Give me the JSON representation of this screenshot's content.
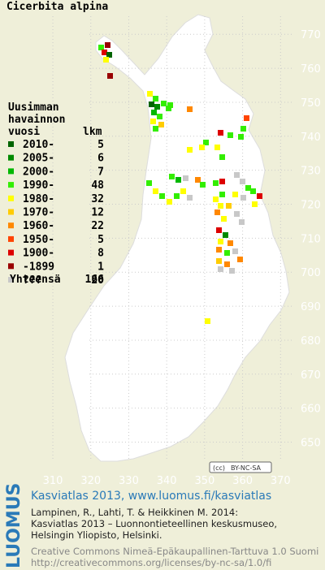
{
  "title": "Cicerbita alpina",
  "legend": {
    "heading": [
      "Uusimman",
      "havainnon",
      "vuosi"
    ],
    "count_heading": "lkm",
    "items": [
      {
        "label": "2010-",
        "count": 5,
        "color": "#006400"
      },
      {
        "label": "2005-",
        "count": 6,
        "color": "#008a00"
      },
      {
        "label": "2000-",
        "count": 7,
        "color": "#00b800"
      },
      {
        "label": "1990-",
        "count": 48,
        "color": "#33ee00"
      },
      {
        "label": "1980-",
        "count": 32,
        "color": "#ffff00"
      },
      {
        "label": "1970-",
        "count": 12,
        "color": "#ffcc00"
      },
      {
        "label": "1960-",
        "count": 22,
        "color": "#ff8800"
      },
      {
        "label": "1950-",
        "count": 5,
        "color": "#ff4400"
      },
      {
        "label": "1900-",
        "count": 8,
        "color": "#dd0000"
      },
      {
        "label": "-1899",
        "count": 1,
        "color": "#990000"
      },
      {
        "label": "???",
        "count": 20,
        "color": "#c8c8c8"
      }
    ],
    "total_label": "Yhteensä",
    "total": 166
  },
  "map": {
    "xlim": [
      304,
      374
    ],
    "ylim": [
      642,
      782
    ],
    "xticks": [
      310,
      320,
      330,
      340,
      350,
      360,
      370
    ],
    "yticks": [
      770,
      760,
      750,
      740,
      730,
      720,
      710,
      700,
      690,
      680,
      670,
      660,
      650
    ],
    "badge": "BY-NC-SA"
  },
  "footer": {
    "logo": "LUOMUS",
    "headline": "Kasviatlas 2013, www.luomus.fi/kasviatlas",
    "citation": [
      "Lampinen, R., Lahti, T. & Heikkinen M. 2014:",
      "Kasviatlas 2013 – Luonnontieteellinen keskusmuseo,",
      "Helsingin Yliopisto, Helsinki."
    ],
    "license": [
      "Creative Commons Nimeä-Epäkaupallinen-Tarttuva 1.0 Suomi",
      "http://creativecommons.org/licenses/by-nc-sa/1.0/fi"
    ]
  }
}
